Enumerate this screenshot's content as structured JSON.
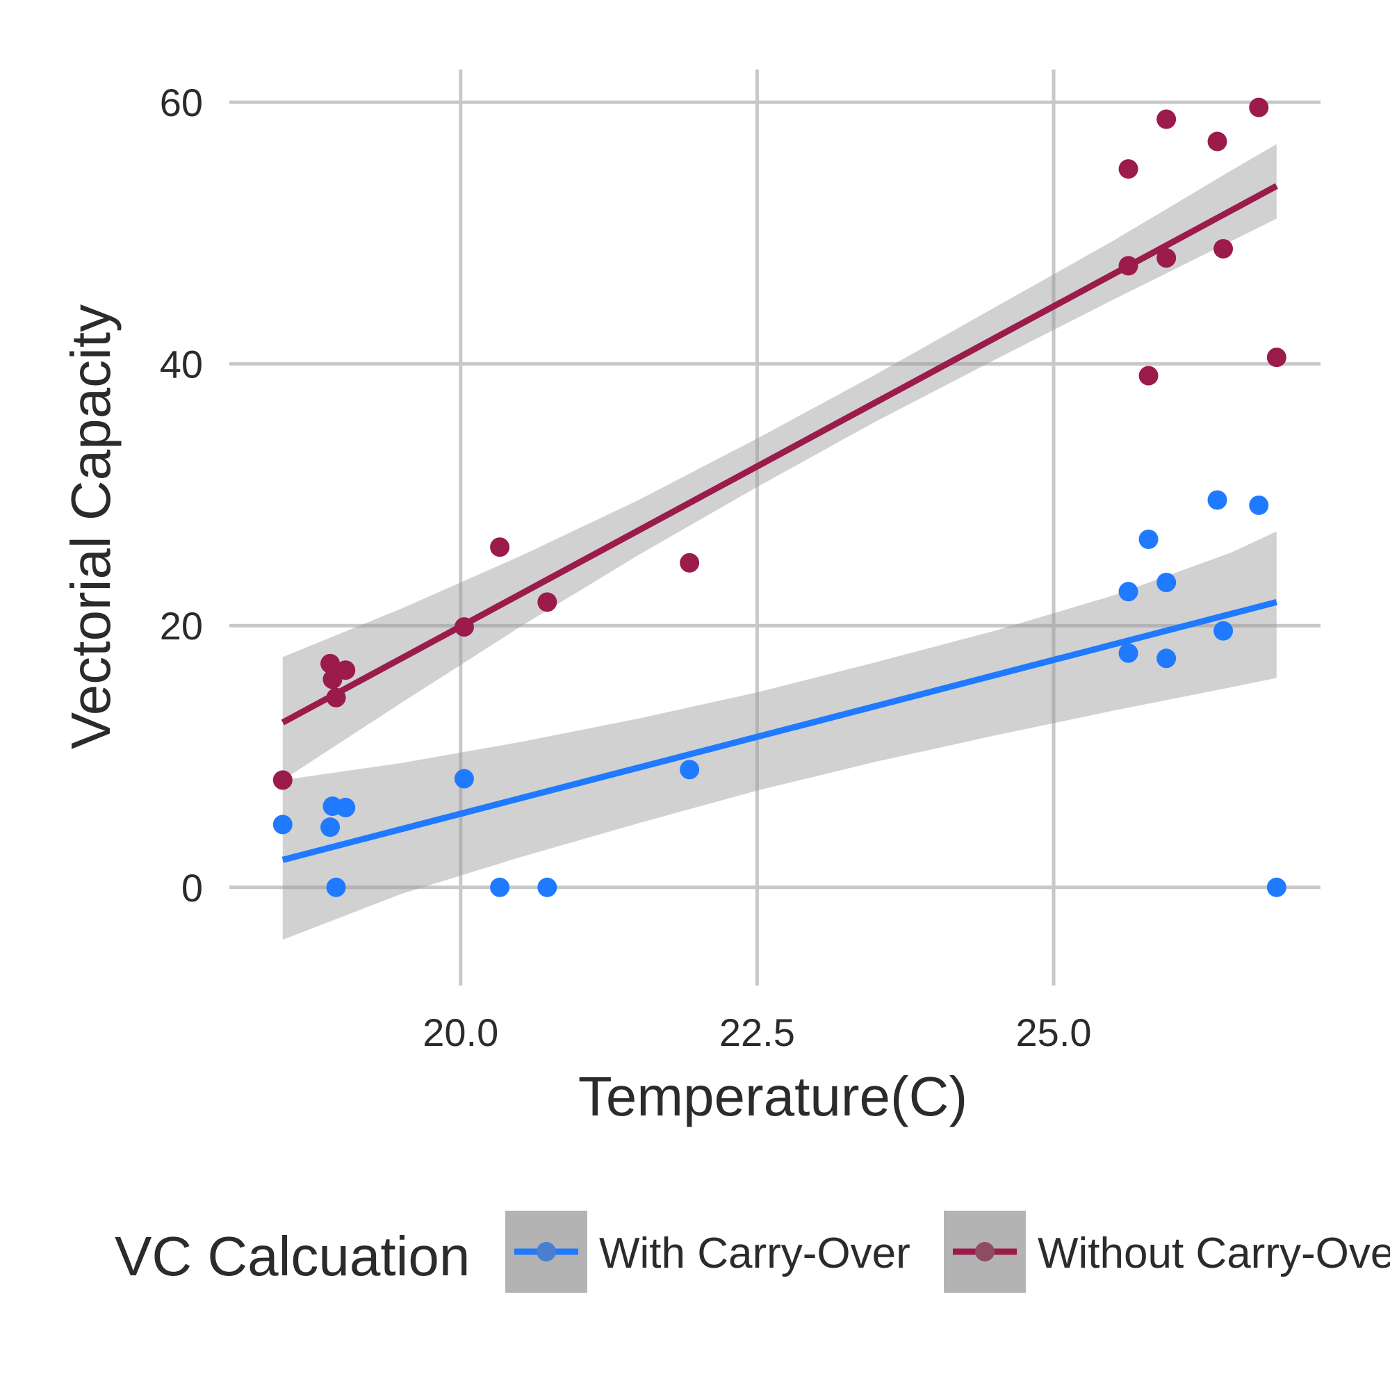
{
  "chart_data": {
    "type": "scatter",
    "xlabel": "Temperature(C)",
    "ylabel": "Vectorial Capacity",
    "xlim": [
      18.05,
      27.25
    ],
    "ylim": [
      -7.5,
      62.5
    ],
    "x_ticks": [
      {
        "value": 20,
        "label": "20.0"
      },
      {
        "value": 22.5,
        "label": "22.5"
      },
      {
        "value": 25,
        "label": "25.0"
      }
    ],
    "y_ticks": [
      {
        "value": 0,
        "label": "0"
      },
      {
        "value": 20,
        "label": "20"
      },
      {
        "value": 40,
        "label": "40"
      },
      {
        "value": 60,
        "label": "60"
      }
    ],
    "grid": true,
    "legend": {
      "title": "VC Calcuation",
      "position": "bottom"
    },
    "series": [
      {
        "name": "With Carry-Over",
        "color": "#1f7aff",
        "points": [
          {
            "x": 18.5,
            "y": 4.8
          },
          {
            "x": 18.9,
            "y": 4.6
          },
          {
            "x": 18.92,
            "y": 6.2
          },
          {
            "x": 18.95,
            "y": 0
          },
          {
            "x": 19.03,
            "y": 6.1
          },
          {
            "x": 20.03,
            "y": 8.3
          },
          {
            "x": 20.33,
            "y": 0
          },
          {
            "x": 20.73,
            "y": 0
          },
          {
            "x": 21.93,
            "y": 9.0
          },
          {
            "x": 25.63,
            "y": 22.6
          },
          {
            "x": 25.63,
            "y": 17.9
          },
          {
            "x": 25.8,
            "y": 26.6
          },
          {
            "x": 25.95,
            "y": 23.3
          },
          {
            "x": 25.95,
            "y": 17.5
          },
          {
            "x": 26.38,
            "y": 29.6
          },
          {
            "x": 26.43,
            "y": 19.6
          },
          {
            "x": 26.73,
            "y": 29.2
          },
          {
            "x": 26.88,
            "y": 0
          }
        ],
        "fit": {
          "x": [
            18.5,
            26.88
          ],
          "y": [
            2.1,
            21.8
          ],
          "band_x": [
            18.5,
            19.5,
            20.5,
            21.5,
            22.5,
            23.5,
            24.5,
            25.5,
            26.5,
            26.88
          ],
          "band_lower": [
            -4.0,
            -0.5,
            2.3,
            4.9,
            7.4,
            9.6,
            11.6,
            13.5,
            15.3,
            16.0
          ],
          "band_upper": [
            8.2,
            9.5,
            11.1,
            12.9,
            14.9,
            17.2,
            19.6,
            22.3,
            25.6,
            27.2
          ]
        }
      },
      {
        "name": "Without Carry-Over",
        "color": "#9b1b4b",
        "points": [
          {
            "x": 18.5,
            "y": 8.2
          },
          {
            "x": 18.9,
            "y": 17.1
          },
          {
            "x": 18.92,
            "y": 15.9
          },
          {
            "x": 18.95,
            "y": 14.5
          },
          {
            "x": 19.03,
            "y": 16.6
          },
          {
            "x": 20.03,
            "y": 19.9
          },
          {
            "x": 20.33,
            "y": 26.0
          },
          {
            "x": 20.73,
            "y": 21.8
          },
          {
            "x": 21.93,
            "y": 24.8
          },
          {
            "x": 25.63,
            "y": 47.5
          },
          {
            "x": 25.63,
            "y": 54.9
          },
          {
            "x": 25.8,
            "y": 39.1
          },
          {
            "x": 25.95,
            "y": 58.7
          },
          {
            "x": 25.95,
            "y": 48.1
          },
          {
            "x": 26.38,
            "y": 57.0
          },
          {
            "x": 26.43,
            "y": 48.8
          },
          {
            "x": 26.73,
            "y": 59.6
          },
          {
            "x": 26.88,
            "y": 40.5
          }
        ],
        "fit": {
          "x": [
            18.5,
            26.88
          ],
          "y": [
            12.6,
            53.6
          ],
          "band_x": [
            18.5,
            19.5,
            20.5,
            21.5,
            22.5,
            23.5,
            24.5,
            25.5,
            26.5,
            26.88
          ],
          "band_lower": [
            8.2,
            14.1,
            19.9,
            25.4,
            30.6,
            35.6,
            40.3,
            44.9,
            49.4,
            51.1
          ],
          "band_upper": [
            17.6,
            21.3,
            25.3,
            29.6,
            34.3,
            39.2,
            44.3,
            49.4,
            54.8,
            56.8
          ]
        }
      }
    ]
  }
}
